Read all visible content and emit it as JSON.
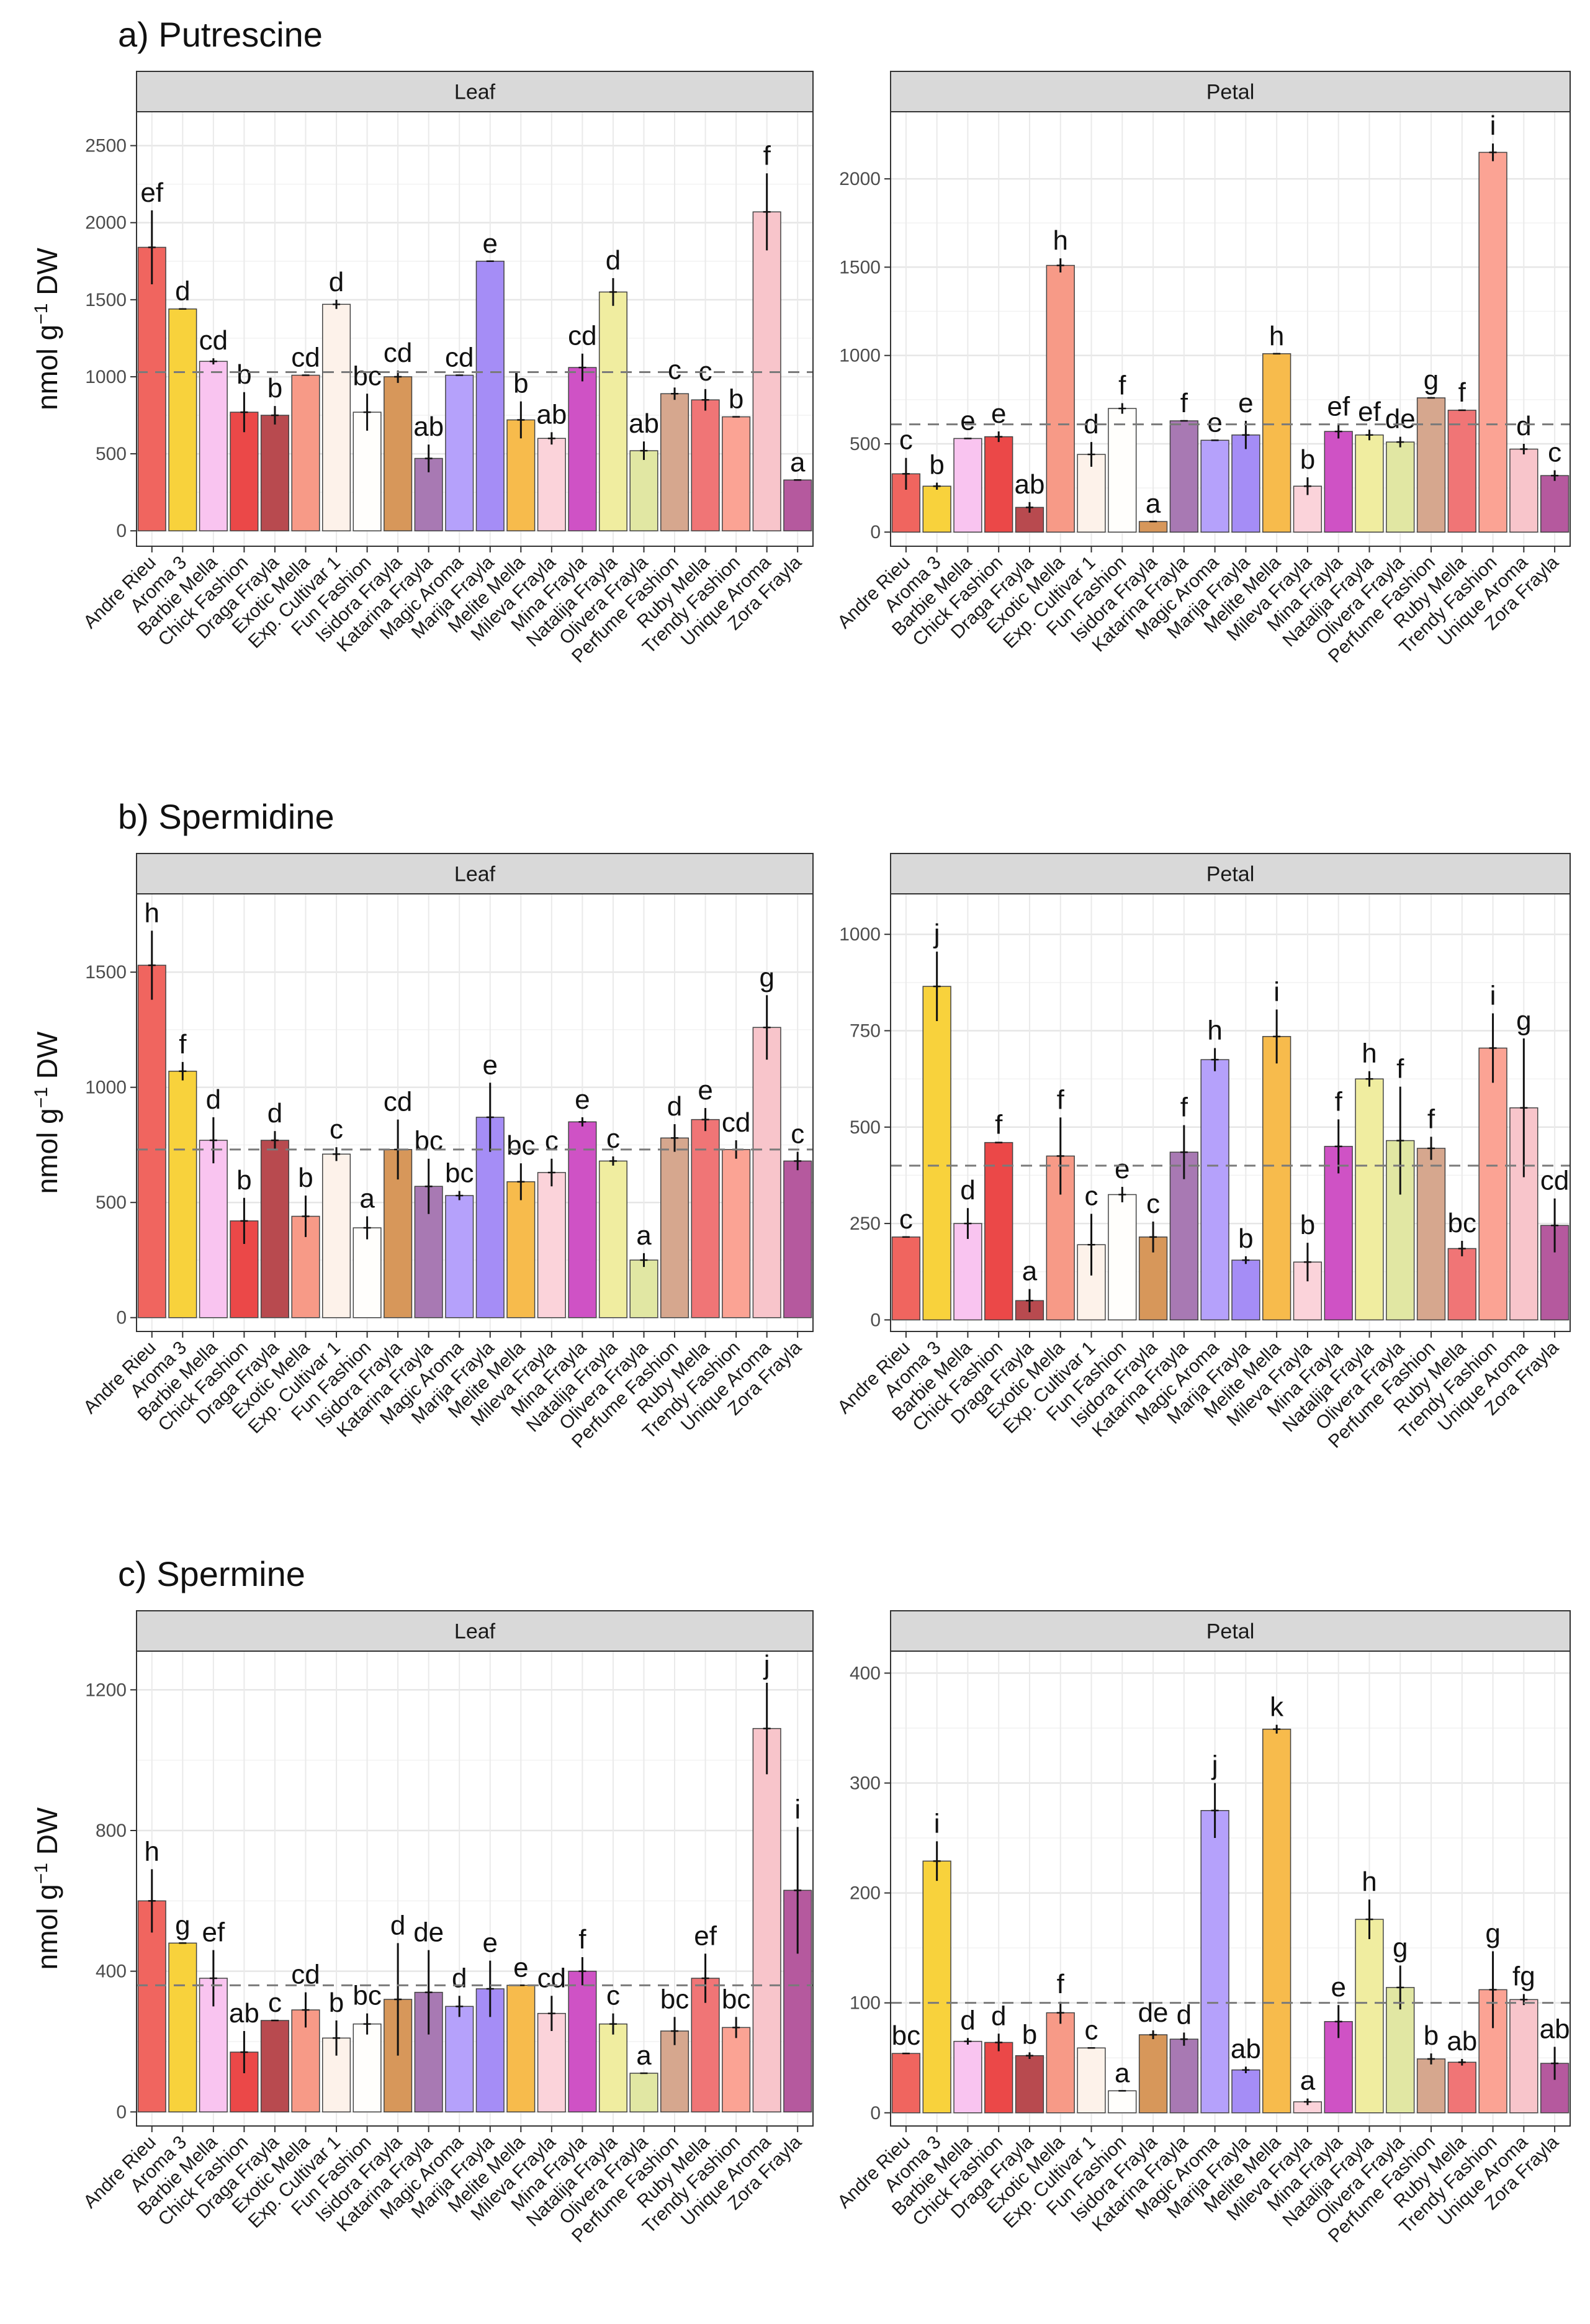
{
  "palette": [
    "#f0655f",
    "#f8d23c",
    "#f9c4f0",
    "#eb4848",
    "#b84a4f",
    "#f79a87",
    "#fdf2ea",
    "#fffefc",
    "#d7975a",
    "#a879b3",
    "#b5a1fb",
    "#a58df6",
    "#f7bb4c",
    "#fbd3da",
    "#cf52c5",
    "#f0eda0",
    "#e1e7a3",
    "#d6a78e",
    "#f07576",
    "#fba394",
    "#f8c5cb",
    "#b5599e"
  ],
  "chart_data": [
    {
      "id": "putrescine",
      "type": "bar",
      "section_title": "a) Putrescine",
      "y_title": "nmol g",
      "y_title_sup": "−1",
      "y_title_tail": " DW",
      "panels": [
        {
          "strip": "Leaf",
          "ylim": [
            -100,
            2720
          ],
          "ticks": [
            0,
            500,
            1000,
            1500,
            2000,
            2500
          ],
          "mean_line": 1030,
          "categories": [
            "Andre Rieu",
            "Aroma 3",
            "Barbie Mella",
            "Chick Fashion",
            "Draga Frayla",
            "Exotic Mella",
            "Exp. Cultivar 1",
            "Fun Fashion",
            "Isidora Frayla",
            "Katarina Frayla",
            "Magic Aroma",
            "Marija Frayla",
            "Melite Mella",
            "Mileva Frayla",
            "Mina Frayla",
            "Natalija Frayla",
            "Olivera Frayla",
            "Perfume Fashion",
            "Ruby Mella",
            "Trendy Fashion",
            "Unique Aroma",
            "Zora Frayla"
          ],
          "values": [
            1840,
            1440,
            1100,
            770,
            750,
            1010,
            1470,
            770,
            1000,
            470,
            1010,
            1750,
            720,
            600,
            1060,
            1550,
            520,
            890,
            850,
            740,
            2070,
            330
          ],
          "errors": [
            240,
            0,
            20,
            130,
            60,
            0,
            30,
            120,
            40,
            90,
            0,
            0,
            120,
            40,
            90,
            90,
            60,
            40,
            70,
            0,
            250,
            0
          ],
          "labels": [
            "ef",
            "d",
            "cd",
            "b",
            "b",
            "cd",
            "d",
            "bc",
            "cd",
            "ab",
            "cd",
            "e",
            "b",
            "ab",
            "cd",
            "d",
            "ab",
            "c",
            "c",
            "b",
            "f",
            "a"
          ]
        },
        {
          "strip": "Petal",
          "ylim": [
            -80,
            2380
          ],
          "ticks": [
            0,
            500,
            1000,
            1500,
            2000
          ],
          "mean_line": 610,
          "categories": [
            "Andre Rieu",
            "Aroma 3",
            "Barbie Mella",
            "Chick Fashion",
            "Draga Frayla",
            "Exotic Mella",
            "Exp. Cultivar 1",
            "Fun Fashion",
            "Isidora Frayla",
            "Katarina Frayla",
            "Magic Aroma",
            "Marija Frayla",
            "Melite Mella",
            "Mileva Frayla",
            "Mina Frayla",
            "Natalija Frayla",
            "Olivera Frayla",
            "Perfume Fashion",
            "Ruby Mella",
            "Trendy Fashion",
            "Unique Aroma",
            "Zora Frayla"
          ],
          "values": [
            330,
            260,
            530,
            540,
            140,
            1510,
            440,
            700,
            60,
            630,
            520,
            550,
            1010,
            260,
            570,
            550,
            510,
            760,
            690,
            2150,
            470,
            320
          ],
          "errors": [
            90,
            20,
            0,
            30,
            30,
            40,
            70,
            30,
            0,
            0,
            0,
            80,
            0,
            50,
            40,
            30,
            30,
            0,
            0,
            50,
            30,
            30
          ],
          "labels": [
            "c",
            "b",
            "e",
            "e",
            "ab",
            "h",
            "d",
            "f",
            "a",
            "f",
            "e",
            "e",
            "h",
            "b",
            "ef",
            "ef",
            "de",
            "g",
            "f",
            "i",
            "d",
            "c"
          ]
        }
      ]
    },
    {
      "id": "spermidine",
      "type": "bar",
      "section_title": "b) Spermidine",
      "y_title": "nmol g",
      "y_title_sup": "−1",
      "y_title_tail": " DW",
      "panels": [
        {
          "strip": "Leaf",
          "ylim": [
            -60,
            1840
          ],
          "ticks": [
            0,
            500,
            1000,
            1500
          ],
          "mean_line": 730,
          "categories": [
            "Andre Rieu",
            "Aroma 3",
            "Barbie Mella",
            "Chick Fashion",
            "Draga Frayla",
            "Exotic Mella",
            "Exp. Cultivar 1",
            "Fun Fashion",
            "Isidora Frayla",
            "Katarina Frayla",
            "Magic Aroma",
            "Marija Frayla",
            "Melite Mella",
            "Mileva Frayla",
            "Mina Frayla",
            "Natalija Frayla",
            "Olivera Frayla",
            "Perfume Fashion",
            "Ruby Mella",
            "Trendy Fashion",
            "Unique Aroma",
            "Zora Frayla"
          ],
          "values": [
            1530,
            1070,
            770,
            420,
            770,
            440,
            710,
            390,
            730,
            570,
            530,
            870,
            590,
            630,
            850,
            680,
            250,
            780,
            860,
            730,
            1260,
            680
          ],
          "errors": [
            150,
            40,
            100,
            100,
            40,
            90,
            30,
            50,
            130,
            120,
            20,
            150,
            80,
            60,
            20,
            20,
            30,
            60,
            50,
            40,
            140,
            40
          ],
          "labels": [
            "h",
            "f",
            "d",
            "b",
            "d",
            "b",
            "c",
            "a",
            "cd",
            "bc",
            "bc",
            "e",
            "bc",
            "c",
            "e",
            "c",
            "a",
            "d",
            "e",
            "cd",
            "g",
            "c"
          ]
        },
        {
          "strip": "Petal",
          "ylim": [
            -30,
            1105
          ],
          "ticks": [
            0,
            250,
            500,
            750,
            1000
          ],
          "mean_line": 400,
          "categories": [
            "Andre Rieu",
            "Aroma 3",
            "Barbie Mella",
            "Chick Fashion",
            "Draga Frayla",
            "Exotic Mella",
            "Exp. Cultivar 1",
            "Fun Fashion",
            "Isidora Frayla",
            "Katarina Frayla",
            "Magic Aroma",
            "Marija Frayla",
            "Melite Mella",
            "Mileva Frayla",
            "Mina Frayla",
            "Natalija Frayla",
            "Olivera Frayla",
            "Perfume Fashion",
            "Ruby Mella",
            "Trendy Fashion",
            "Unique Aroma",
            "Zora Frayla"
          ],
          "values": [
            215,
            865,
            250,
            460,
            50,
            425,
            195,
            325,
            215,
            435,
            675,
            155,
            735,
            150,
            450,
            625,
            465,
            445,
            185,
            705,
            550,
            245
          ],
          "errors": [
            0,
            90,
            40,
            0,
            30,
            100,
            80,
            20,
            40,
            70,
            30,
            10,
            70,
            50,
            70,
            20,
            140,
            30,
            20,
            90,
            180,
            70
          ],
          "labels": [
            "c",
            "j",
            "d",
            "f",
            "a",
            "f",
            "c",
            "e",
            "c",
            "f",
            "h",
            "b",
            "i",
            "b",
            "f",
            "h",
            "f",
            "f",
            "bc",
            "i",
            "g",
            "cd"
          ]
        }
      ]
    },
    {
      "id": "spermine",
      "type": "bar",
      "section_title": "c) Spermine",
      "y_title": "nmol g",
      "y_title_sup": "−1",
      "y_title_tail": " DW",
      "panels": [
        {
          "strip": "Leaf",
          "ylim": [
            -40,
            1310
          ],
          "ticks": [
            0,
            400,
            800,
            1200
          ],
          "mean_line": 360,
          "categories": [
            "Andre Rieu",
            "Aroma 3",
            "Barbie Mella",
            "Chick Fashion",
            "Draga Frayla",
            "Exotic Mella",
            "Exp. Cultivar 1",
            "Fun Fashion",
            "Isidora Frayla",
            "Katarina Frayla",
            "Magic Aroma",
            "Marija Frayla",
            "Melite Mella",
            "Mileva Frayla",
            "Mina Frayla",
            "Natalija Frayla",
            "Olivera Frayla",
            "Perfume Fashion",
            "Ruby Mella",
            "Trendy Fashion",
            "Unique Aroma",
            "Zora Frayla"
          ],
          "values": [
            600,
            480,
            380,
            170,
            260,
            290,
            210,
            250,
            320,
            340,
            300,
            350,
            360,
            280,
            400,
            250,
            110,
            230,
            380,
            240,
            1090,
            630
          ],
          "errors": [
            90,
            0,
            80,
            60,
            0,
            50,
            50,
            30,
            160,
            120,
            30,
            80,
            0,
            50,
            40,
            30,
            0,
            40,
            70,
            30,
            130,
            180
          ],
          "labels": [
            "h",
            "g",
            "ef",
            "ab",
            "c",
            "cd",
            "b",
            "bc",
            "d",
            "de",
            "d",
            "e",
            "e",
            "cd",
            "f",
            "c",
            "a",
            "bc",
            "ef",
            "bc",
            "j",
            "i"
          ]
        },
        {
          "strip": "Petal",
          "ylim": [
            -12,
            420
          ],
          "ticks": [
            0,
            100,
            200,
            300,
            400
          ],
          "mean_line": 100,
          "categories": [
            "Andre Rieu",
            "Aroma 3",
            "Barbie Mella",
            "Chick Fashion",
            "Draga Frayla",
            "Exotic Mella",
            "Exp. Cultivar 1",
            "Fun Fashion",
            "Isidora Frayla",
            "Katarina Frayla",
            "Magic Aroma",
            "Marija Frayla",
            "Melite Mella",
            "Mileva Frayla",
            "Mina Frayla",
            "Natalija Frayla",
            "Olivera Frayla",
            "Perfume Fashion",
            "Ruby Mella",
            "Trendy Fashion",
            "Unique Aroma",
            "Zora Frayla"
          ],
          "values": [
            54,
            229,
            65,
            64,
            52,
            91,
            59,
            20,
            71,
            67,
            275,
            39,
            349,
            10,
            83,
            176,
            114,
            49,
            46,
            112,
            103,
            45
          ],
          "errors": [
            0,
            18,
            3,
            8,
            3,
            10,
            0,
            0,
            4,
            6,
            25,
            3,
            4,
            3,
            15,
            18,
            20,
            5,
            3,
            35,
            5,
            15
          ],
          "labels": [
            "bc",
            "i",
            "d",
            "d",
            "b",
            "f",
            "c",
            "a",
            "de",
            "d",
            "j",
            "ab",
            "k",
            "a",
            "e",
            "h",
            "g",
            "b",
            "ab",
            "g",
            "fg",
            "ab"
          ]
        }
      ]
    }
  ]
}
